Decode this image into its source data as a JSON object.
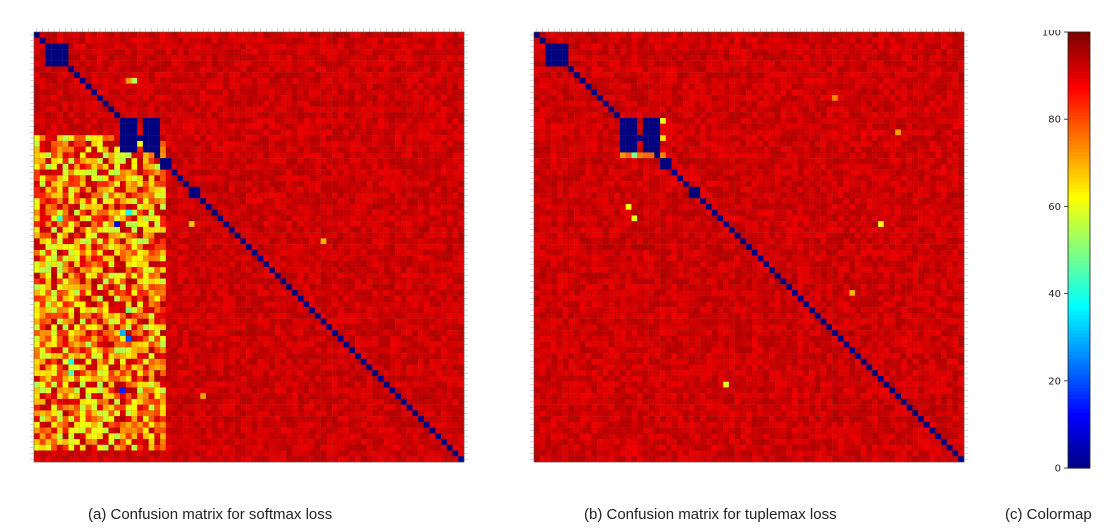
{
  "captions": {
    "a": "(a) Confusion matrix for softmax loss",
    "b": "(b) Confusion matrix for tuplemax loss",
    "c": "(c) Colormap"
  },
  "chart_data": [
    {
      "type": "heatmap",
      "panel": "a",
      "title": "",
      "size": 75,
      "colormap": "jet",
      "value_range": [
        0,
        100
      ],
      "diagonal_value": 0,
      "background_value": 95,
      "blocks": [
        {
          "rows": [
            2,
            5
          ],
          "cols": [
            2,
            5
          ],
          "value": 0
        },
        {
          "rows": [
            15,
            17
          ],
          "cols": [
            15,
            17
          ],
          "value": 0
        },
        {
          "rows": [
            15,
            17
          ],
          "cols": [
            19,
            21
          ],
          "value": 0
        },
        {
          "rows": [
            18,
            20
          ],
          "cols": [
            15,
            17
          ],
          "value": 0
        },
        {
          "rows": [
            18,
            20
          ],
          "cols": [
            19,
            21
          ],
          "value": 0
        },
        {
          "rows": [
            22,
            23
          ],
          "cols": [
            22,
            23
          ],
          "value": 0
        },
        {
          "rows": [
            27,
            28
          ],
          "cols": [
            27,
            28
          ],
          "value": 0
        }
      ],
      "confused_region": {
        "rows": [
          18,
          72
        ],
        "cols": [
          0,
          22
        ],
        "value_range": [
          55,
          85
        ]
      },
      "highlights": [
        {
          "row": 8,
          "col": 17,
          "value": 55
        },
        {
          "row": 8,
          "col": 16,
          "value": 72
        },
        {
          "row": 31,
          "col": 16,
          "value": 40
        },
        {
          "row": 32,
          "col": 4,
          "value": 45
        },
        {
          "row": 33,
          "col": 14,
          "value": 10
        },
        {
          "row": 38,
          "col": 1,
          "value": 58
        },
        {
          "row": 48,
          "col": 16,
          "value": 50
        },
        {
          "row": 52,
          "col": 15,
          "value": 30
        },
        {
          "row": 53,
          "col": 16,
          "value": 20
        },
        {
          "row": 57,
          "col": 6,
          "value": 40
        },
        {
          "row": 59,
          "col": 6,
          "value": 45
        },
        {
          "row": 62,
          "col": 15,
          "value": 15
        },
        {
          "row": 66,
          "col": 16,
          "value": 55
        },
        {
          "row": 70,
          "col": 9,
          "value": 65
        },
        {
          "row": 36,
          "col": 50,
          "value": 70
        },
        {
          "row": 63,
          "col": 29,
          "value": 72
        },
        {
          "row": 33,
          "col": 27,
          "value": 68
        }
      ]
    },
    {
      "type": "heatmap",
      "panel": "b",
      "title": "",
      "size": 75,
      "colormap": "jet",
      "value_range": [
        0,
        100
      ],
      "diagonal_value": 0,
      "background_value": 95,
      "blocks": [
        {
          "rows": [
            2,
            5
          ],
          "cols": [
            2,
            5
          ],
          "value": 0
        },
        {
          "rows": [
            15,
            17
          ],
          "cols": [
            15,
            17
          ],
          "value": 0
        },
        {
          "rows": [
            15,
            17
          ],
          "cols": [
            19,
            21
          ],
          "value": 0
        },
        {
          "rows": [
            18,
            20
          ],
          "cols": [
            15,
            17
          ],
          "value": 0
        },
        {
          "rows": [
            18,
            20
          ],
          "cols": [
            19,
            21
          ],
          "value": 0
        },
        {
          "rows": [
            22,
            23
          ],
          "cols": [
            22,
            23
          ],
          "value": 0
        },
        {
          "rows": [
            27,
            28
          ],
          "cols": [
            27,
            28
          ],
          "value": 0
        }
      ],
      "confused_region": {
        "rows": [
          21,
          21
        ],
        "cols": [
          15,
          22
        ],
        "value_range": [
          70,
          80
        ]
      },
      "highlights": [
        {
          "row": 15,
          "col": 22,
          "value": 60
        },
        {
          "row": 18,
          "col": 22,
          "value": 65
        },
        {
          "row": 21,
          "col": 17,
          "value": 50
        },
        {
          "row": 30,
          "col": 16,
          "value": 62
        },
        {
          "row": 32,
          "col": 17,
          "value": 60
        },
        {
          "row": 33,
          "col": 60,
          "value": 62
        },
        {
          "row": 45,
          "col": 55,
          "value": 70
        },
        {
          "row": 61,
          "col": 33,
          "value": 60
        },
        {
          "row": 17,
          "col": 63,
          "value": 72
        },
        {
          "row": 11,
          "col": 52,
          "value": 75
        }
      ]
    },
    {
      "type": "colorbar",
      "panel": "c",
      "title": "",
      "colormap": "jet",
      "range": [
        0,
        100
      ],
      "ticks": [
        0,
        20,
        40,
        60,
        80,
        100
      ]
    }
  ]
}
